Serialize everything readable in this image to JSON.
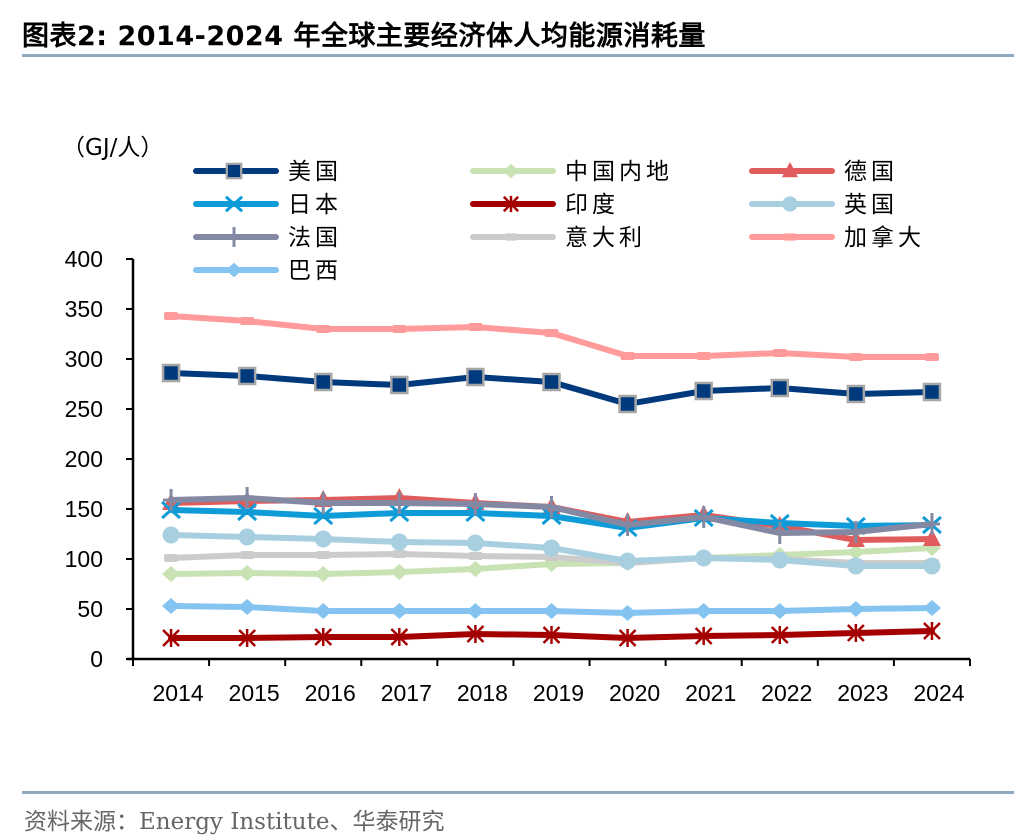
{
  "title": "图表2:   2014-2024 年全球主要经济体人均能源消耗量",
  "source": "资料来源：Energy Institute、华泰研究",
  "chart_data": {
    "type": "line",
    "title": "2014-2024 年全球主要经济体人均能源消耗量",
    "unit_label": "（GJ/人）",
    "xlabel": "",
    "ylabel": "GJ/人",
    "ylim": [
      0,
      400
    ],
    "yticks": [
      0,
      50,
      100,
      150,
      200,
      250,
      300,
      350,
      400
    ],
    "grid": false,
    "legend_position": "top",
    "categories": [
      "2014",
      "2015",
      "2016",
      "2017",
      "2018",
      "2019",
      "2020",
      "2021",
      "2022",
      "2023",
      "2024"
    ],
    "series": [
      {
        "name": "美国",
        "color": "#003a7d",
        "marker": "square",
        "values": [
          286,
          283,
          277,
          274,
          282,
          277,
          255,
          268,
          271,
          265,
          267
        ]
      },
      {
        "name": "中国内地",
        "color": "#c9e2b4",
        "marker": "diamond",
        "values": [
          85,
          86,
          85,
          87,
          90,
          95,
          96,
          101,
          104,
          107,
          111
        ]
      },
      {
        "name": "德国",
        "color": "#e05c5c",
        "marker": "triangle",
        "values": [
          156,
          158,
          159,
          161,
          156,
          152,
          137,
          144,
          133,
          119,
          120
        ]
      },
      {
        "name": "日本",
        "color": "#0e9bd8",
        "marker": "x",
        "values": [
          149,
          147,
          143,
          146,
          146,
          143,
          131,
          141,
          136,
          133,
          134
        ]
      },
      {
        "name": "印度",
        "color": "#a50000",
        "marker": "asterisk",
        "values": [
          21,
          21,
          22,
          22,
          25,
          24,
          21,
          23,
          24,
          26,
          28
        ]
      },
      {
        "name": "英国",
        "color": "#a8cfe0",
        "marker": "circle",
        "values": [
          124,
          122,
          120,
          117,
          116,
          111,
          98,
          101,
          99,
          93,
          93
        ]
      },
      {
        "name": "法国",
        "color": "#8389a3",
        "marker": "plus",
        "values": [
          159,
          161,
          156,
          156,
          155,
          152,
          134,
          142,
          126,
          127,
          135
        ]
      },
      {
        "name": "意大利",
        "color": "#cccccc",
        "marker": "dash",
        "values": [
          101,
          104,
          104,
          105,
          103,
          102,
          96,
          101,
          100,
          96,
          96
        ]
      },
      {
        "name": "加拿大",
        "color": "#ff9b9b",
        "marker": "dash",
        "values": [
          343,
          338,
          330,
          330,
          332,
          326,
          303,
          303,
          306,
          302,
          302
        ]
      },
      {
        "name": "巴西",
        "color": "#85c3f0",
        "marker": "diamond",
        "values": [
          53,
          52,
          48,
          48,
          48,
          48,
          46,
          48,
          48,
          50,
          51
        ]
      }
    ]
  }
}
